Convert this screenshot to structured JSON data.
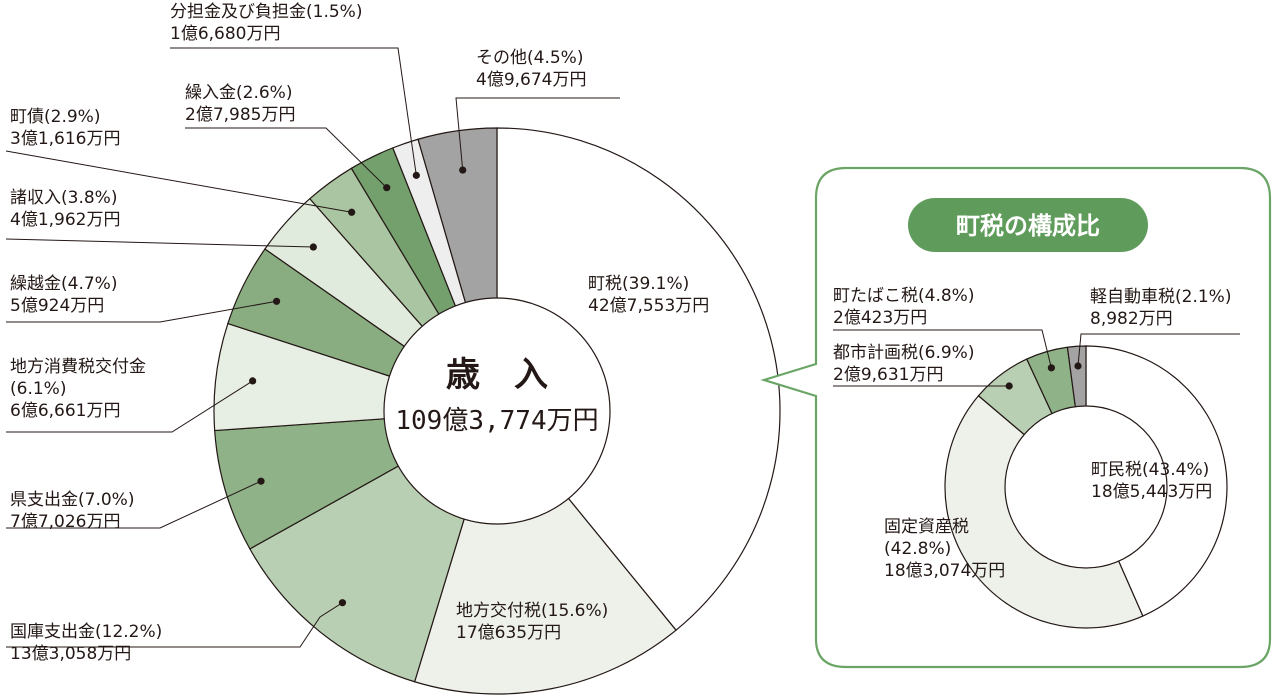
{
  "chart_data": [
    {
      "type": "pie",
      "title": "歳　入",
      "total": "109億3,774万円",
      "slices": [
        {
          "name": "町税",
          "percent": "(39.1%)",
          "amount": "42億7,553万円",
          "value": 39.1,
          "color": "#ffffff"
        },
        {
          "name": "地方交付税",
          "percent": "(15.6%)",
          "amount": "17億635万円",
          "value": 15.6,
          "color": "#eef1e9"
        },
        {
          "name": "国庫支出金",
          "percent": "(12.2%)",
          "amount": "13億3,058万円",
          "value": 12.2,
          "color": "#b9cfb4"
        },
        {
          "name": "県支出金",
          "percent": "(7.0%)",
          "amount": "7億7,026万円",
          "value": 7.0,
          "color": "#8fb288"
        },
        {
          "name": "地方消費税交付金",
          "percent": "(6.1%)",
          "amount": "6億6,661万円",
          "value": 6.1,
          "color": "#e7eee3"
        },
        {
          "name": "繰越金",
          "percent": "(4.7%)",
          "amount": "5億924万円",
          "value": 4.7,
          "color": "#89ad80"
        },
        {
          "name": "諸収入",
          "percent": "(3.8%)",
          "amount": "4億1,962万円",
          "value": 3.8,
          "color": "#e1ebdd"
        },
        {
          "name": "町債",
          "percent": "(2.9%)",
          "amount": "3億1,616万円",
          "value": 2.9,
          "color": "#aac5a2"
        },
        {
          "name": "繰入金",
          "percent": "(2.6%)",
          "amount": "2億7,985万円",
          "value": 2.6,
          "color": "#73a06c"
        },
        {
          "name": "分担金及び負担金",
          "percent": "(1.5%)",
          "amount": "1億6,680万円",
          "value": 1.5,
          "color": "#eeeeee"
        },
        {
          "name": "その他",
          "percent": "(4.5%)",
          "amount": "4億9,674万円",
          "value": 4.5,
          "color": "#a3a3a3"
        }
      ]
    },
    {
      "type": "pie",
      "title": "町税の構成比",
      "slices": [
        {
          "name": "町民税",
          "percent": "(43.4%)",
          "amount": "18億5,443万円",
          "value": 43.4,
          "color": "#ffffff"
        },
        {
          "name": "固定資産税",
          "percent": "(42.8%)",
          "amount": "18億3,074万円",
          "value": 42.8,
          "color": "#eef1e9"
        },
        {
          "name": "都市計画税",
          "percent": "(6.9%)",
          "amount": "2億9,631万円",
          "value": 6.9,
          "color": "#b9cfb4"
        },
        {
          "name": "町たばこ税",
          "percent": "(4.8%)",
          "amount": "2億423万円",
          "value": 4.8,
          "color": "#8fb288"
        },
        {
          "name": "軽自動車税",
          "percent": "(2.1%)",
          "amount": "8,982万円",
          "value": 2.1,
          "color": "#a3a3a3"
        }
      ]
    }
  ],
  "colors": {
    "outline": "#231815",
    "panel_border": "#6aa566",
    "badge": "#5f9c5b",
    "label_line": "#231815"
  }
}
